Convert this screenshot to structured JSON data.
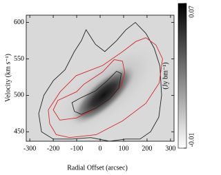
{
  "chart_data": {
    "type": "contour",
    "x_label": "Radial Offset (arcsec)",
    "y_label": "Velocity (km s⁻¹)",
    "xlim": [
      -315,
      315
    ],
    "xticks": [
      -300,
      -200,
      -100,
      0,
      100,
      200,
      300
    ],
    "ylim": [
      437,
      610
    ],
    "yticks": [
      450,
      500,
      550,
      600
    ],
    "colorbar": {
      "label": "(Jy bm⁻¹)",
      "lim": [
        -0.01,
        0.07
      ],
      "ticks": [
        -0.01,
        0.07
      ]
    },
    "contours": [
      {
        "color": "#222222",
        "x": [
          -250,
          -262,
          -240,
          -200,
          -150,
          -110,
          -80,
          -60,
          -20,
          20,
          70,
          110,
          150,
          195,
          230,
          255,
          262,
          250,
          215,
          170,
          110,
          40,
          -40,
          -120,
          -200,
          -250
        ],
        "y": [
          450,
          475,
          500,
          520,
          535,
          560,
          575,
          590,
          570,
          560,
          575,
          590,
          600,
          585,
          565,
          540,
          500,
          470,
          450,
          440,
          440,
          437,
          442,
          440,
          440,
          450
        ]
      },
      {
        "color": "#d62728",
        "x": [
          -187,
          -215,
          -221,
          -170,
          -102,
          11,
          96,
          153,
          195,
          238,
          266,
          252,
          195,
          96,
          -17,
          -130,
          -187
        ],
        "y": [
          446,
          461,
          480,
          505,
          527,
          541,
          560,
          574,
          579,
          569,
          550,
          517,
          489,
          465,
          446,
          442,
          446
        ]
      },
      {
        "color": "#d62728",
        "x": [
          -172,
          -200,
          -180,
          -100,
          -70,
          10,
          60,
          95,
          105,
          90,
          40,
          -30,
          -100,
          -172
        ],
        "y": [
          466,
          480,
          493,
          505,
          515,
          532,
          549,
          547,
          531,
          513,
          495,
          480,
          469,
          466
        ]
      },
      {
        "color": "#222222",
        "x": [
          -110,
          -120,
          -80,
          -20,
          30,
          70,
          90,
          80,
          40,
          -20,
          -80,
          -110
        ],
        "y": [
          478,
          490,
          497,
          506,
          520,
          533,
          530,
          510,
          495,
          482,
          474,
          478
        ]
      }
    ]
  }
}
